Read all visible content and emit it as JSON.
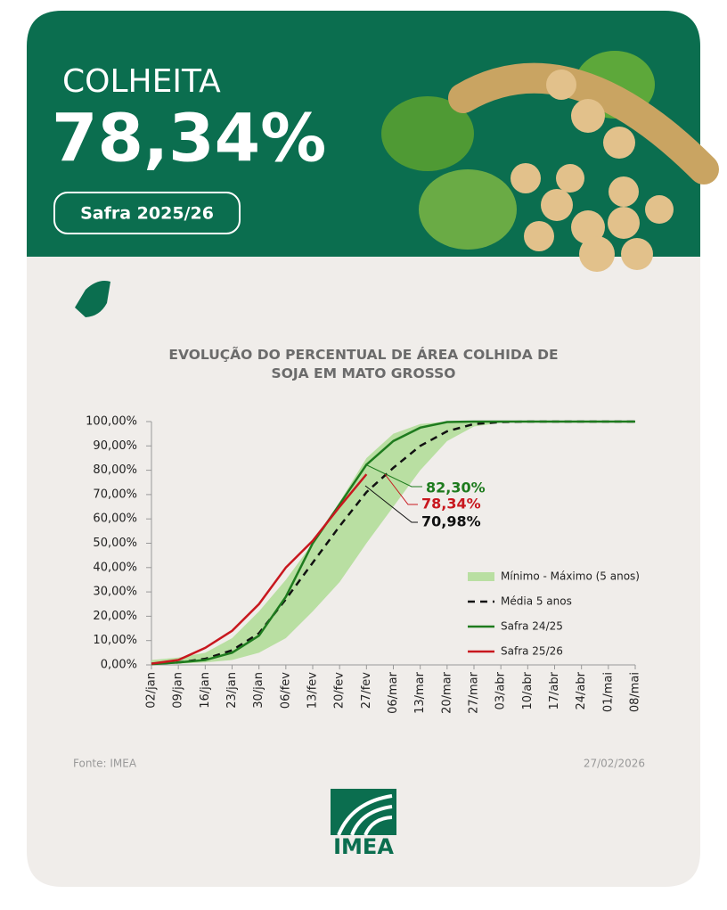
{
  "header": {
    "label": "COLHEITA",
    "value": "78,34%",
    "badge": "Safra 2025/26"
  },
  "chart_data": {
    "type": "line",
    "title": "EVOLUÇÃO DO PERCENTUAL DE ÁREA COLHIDA DE SOJA EM MATO GROSSO",
    "categories": [
      "02/jan",
      "09/jan",
      "16/jan",
      "23/jan",
      "30/jan",
      "06/fev",
      "13/fev",
      "20/fev",
      "27/fev",
      "06/mar",
      "13/mar",
      "20/mar",
      "27/mar",
      "03/abr",
      "10/abr",
      "17/abr",
      "24/abr",
      "01/mai",
      "08/mai"
    ],
    "ylim": [
      0,
      100
    ],
    "yticks": [
      {
        "value": 0,
        "label": "0,00%"
      },
      {
        "value": 10,
        "label": "10,00%"
      },
      {
        "value": 20,
        "label": "20,00%"
      },
      {
        "value": 30,
        "label": "30,00%"
      },
      {
        "value": 40,
        "label": "40,00%"
      },
      {
        "value": 50,
        "label": "50,00%"
      },
      {
        "value": 60,
        "label": "60,00%"
      },
      {
        "value": 70,
        "label": "70,00%"
      },
      {
        "value": 80,
        "label": "80,00%"
      },
      {
        "value": 90,
        "label": "90,00%"
      },
      {
        "value": 100,
        "label": "100,00%"
      }
    ],
    "series": [
      {
        "name": "Mínimo - Máximo (5 anos)",
        "color": "#b9dfa2",
        "style": "band",
        "lower": [
          0,
          0.5,
          1,
          2,
          5,
          11,
          22,
          34,
          50,
          65,
          80,
          92,
          98,
          99.5,
          100,
          100,
          100,
          100,
          100
        ],
        "upper": [
          2,
          3,
          5,
          11,
          22,
          35,
          50,
          67,
          85,
          95,
          99,
          100,
          100,
          100,
          100,
          100,
          100,
          100,
          100
        ]
      },
      {
        "name": "Média 5 anos",
        "color": "#111111",
        "style": "dashed",
        "values": [
          0.5,
          1,
          2.5,
          6,
          13,
          27,
          42,
          57,
          70.98,
          81,
          90,
          96,
          99,
          99.8,
          100,
          100,
          100,
          100,
          100
        ]
      },
      {
        "name": "Safra 24/25",
        "color": "#1e7b1e",
        "style": "solid",
        "values": [
          0.3,
          1,
          2,
          5,
          12,
          28,
          50,
          66,
          82.3,
          92,
          97.5,
          99.8,
          100,
          100,
          100,
          100,
          100,
          100,
          100
        ]
      },
      {
        "name": "Safra 25/26",
        "color": "#c8171e",
        "style": "solid",
        "values": [
          0.5,
          2,
          7,
          14,
          25,
          40,
          51,
          65,
          78.34,
          null,
          null,
          null,
          null,
          null,
          null,
          null,
          null,
          null,
          null
        ]
      }
    ],
    "annotations": [
      {
        "text": "82,30%",
        "color": "#1e7b1e"
      },
      {
        "text": "78,34%",
        "color": "#c8171e"
      },
      {
        "text": "70,98%",
        "color": "#111111"
      }
    ]
  },
  "footer": {
    "source": "Fonte: IMEA",
    "date": "27/02/2026",
    "logo": "IMEA"
  }
}
